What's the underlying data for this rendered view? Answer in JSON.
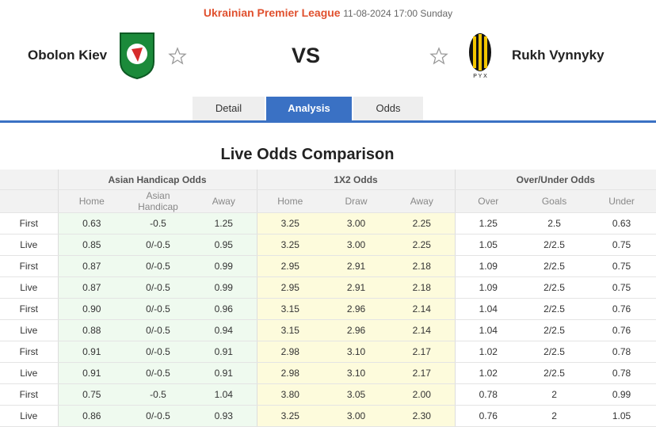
{
  "header": {
    "league": "Ukrainian Premier League",
    "datetime": "11-08-2024 17:00 Sunday",
    "home_team": "Obolon Kiev",
    "vs": "VS",
    "away_team": "Rukh Vynnyky"
  },
  "tabs": [
    "Detail",
    "Analysis",
    "Odds"
  ],
  "section_title": "Live Odds Comparison",
  "table": {
    "groups": [
      "Asian Handicap Odds",
      "1X2 Odds",
      "Over/Under Odds"
    ],
    "subheaders": [
      "Home",
      "Asian Handicap",
      "Away",
      "Home",
      "Draw",
      "Away",
      "Over",
      "Goals",
      "Under"
    ],
    "rows": [
      [
        "First",
        "0.63",
        "-0.5",
        "1.25",
        "3.25",
        "3.00",
        "2.25",
        "1.25",
        "2.5",
        "0.63"
      ],
      [
        "Live",
        "0.85",
        "0/-0.5",
        "0.95",
        "3.25",
        "3.00",
        "2.25",
        "1.05",
        "2/2.5",
        "0.75"
      ],
      [
        "First",
        "0.87",
        "0/-0.5",
        "0.99",
        "2.95",
        "2.91",
        "2.18",
        "1.09",
        "2/2.5",
        "0.75"
      ],
      [
        "Live",
        "0.87",
        "0/-0.5",
        "0.99",
        "2.95",
        "2.91",
        "2.18",
        "1.09",
        "2/2.5",
        "0.75"
      ],
      [
        "First",
        "0.90",
        "0/-0.5",
        "0.96",
        "3.15",
        "2.96",
        "2.14",
        "1.04",
        "2/2.5",
        "0.76"
      ],
      [
        "Live",
        "0.88",
        "0/-0.5",
        "0.94",
        "3.15",
        "2.96",
        "2.14",
        "1.04",
        "2/2.5",
        "0.76"
      ],
      [
        "First",
        "0.91",
        "0/-0.5",
        "0.91",
        "2.98",
        "3.10",
        "2.17",
        "1.02",
        "2/2.5",
        "0.78"
      ],
      [
        "Live",
        "0.91",
        "0/-0.5",
        "0.91",
        "2.98",
        "3.10",
        "2.17",
        "1.02",
        "2/2.5",
        "0.78"
      ],
      [
        "First",
        "0.75",
        "-0.5",
        "1.04",
        "3.80",
        "3.05",
        "2.00",
        "0.78",
        "2",
        "0.99"
      ],
      [
        "Live",
        "0.86",
        "0/-0.5",
        "0.93",
        "3.25",
        "3.00",
        "2.30",
        "0.76",
        "2",
        "1.05"
      ]
    ]
  }
}
